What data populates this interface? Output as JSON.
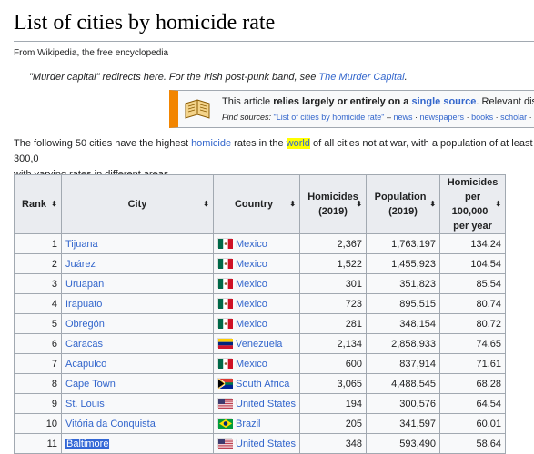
{
  "page": {
    "title": "List of cities by homicide rate",
    "tagline": "From Wikipedia, the free encyclopedia",
    "hatnote_prefix": "\"Murder capital\" redirects here. For the Irish post-punk band, see ",
    "hatnote_link": "The Murder Capital",
    "hatnote_suffix": "."
  },
  "ambox": {
    "text_prefix": "This article ",
    "text_bold": "relies largely or entirely on a ",
    "text_link": "single source",
    "text_suffix": ". Relevant discu",
    "find_label": "Find sources:",
    "find_query": "\"List of cities by homicide rate\"",
    "find_sep": " – ",
    "find_links": [
      "news",
      "newspapers",
      "books",
      "scholar"
    ]
  },
  "intro": {
    "part1": "The following 50 cities have the highest ",
    "link1": "homicide",
    "part2": " rates in the ",
    "link2": "world",
    "part3": " of all cities not at war, with a population of at least 300,0",
    "part4": "with varying rates in different areas."
  },
  "table": {
    "headers": {
      "rank": "Rank",
      "city": "City",
      "country": "Country",
      "homicides_l1": "Homicides",
      "homicides_l2": "(2019)",
      "population_l1": "Population",
      "population_l2": "(2019)",
      "rate_l1": "Homicides",
      "rate_l2": "per 100,000",
      "rate_l3": "per year"
    },
    "rows": [
      {
        "rank": "1",
        "city": "Tijuana",
        "country": "Mexico",
        "flag": "mexico",
        "homicides": "2,367",
        "population": "1,763,197",
        "rate": "134.24"
      },
      {
        "rank": "2",
        "city": "Juárez",
        "country": "Mexico",
        "flag": "mexico",
        "homicides": "1,522",
        "population": "1,455,923",
        "rate": "104.54"
      },
      {
        "rank": "3",
        "city": "Uruapan",
        "country": "Mexico",
        "flag": "mexico",
        "homicides": "301",
        "population": "351,823",
        "rate": "85.54"
      },
      {
        "rank": "4",
        "city": "Irapuato",
        "country": "Mexico",
        "flag": "mexico",
        "homicides": "723",
        "population": "895,515",
        "rate": "80.74"
      },
      {
        "rank": "5",
        "city": "Obregón",
        "country": "Mexico",
        "flag": "mexico",
        "homicides": "281",
        "population": "348,154",
        "rate": "80.72"
      },
      {
        "rank": "6",
        "city": "Caracas",
        "country": "Venezuela",
        "flag": "venezuela",
        "homicides": "2,134",
        "population": "2,858,933",
        "rate": "74.65"
      },
      {
        "rank": "7",
        "city": "Acapulco",
        "country": "Mexico",
        "flag": "mexico",
        "homicides": "600",
        "population": "837,914",
        "rate": "71.61"
      },
      {
        "rank": "8",
        "city": "Cape Town",
        "country": "South Africa",
        "flag": "south-africa",
        "homicides": "3,065",
        "population": "4,488,545",
        "rate": "68.28"
      },
      {
        "rank": "9",
        "city": "St. Louis",
        "country": "United States",
        "flag": "usa",
        "homicides": "194",
        "population": "300,576",
        "rate": "64.54"
      },
      {
        "rank": "10",
        "city": "Vitória da Conquista",
        "country": "Brazil",
        "flag": "brazil",
        "homicides": "205",
        "population": "341,597",
        "rate": "60.01"
      },
      {
        "rank": "11",
        "city": "Baltimore",
        "country": "United States",
        "flag": "usa",
        "homicides": "348",
        "population": "593,490",
        "rate": "58.64"
      }
    ]
  },
  "colors": {
    "link": "#3366cc",
    "header_bg": "#eaecf0",
    "border": "#a2a9b1",
    "ambox_accent": "#f28500",
    "selection": "#3367d6",
    "highlight": "#ffff00"
  }
}
